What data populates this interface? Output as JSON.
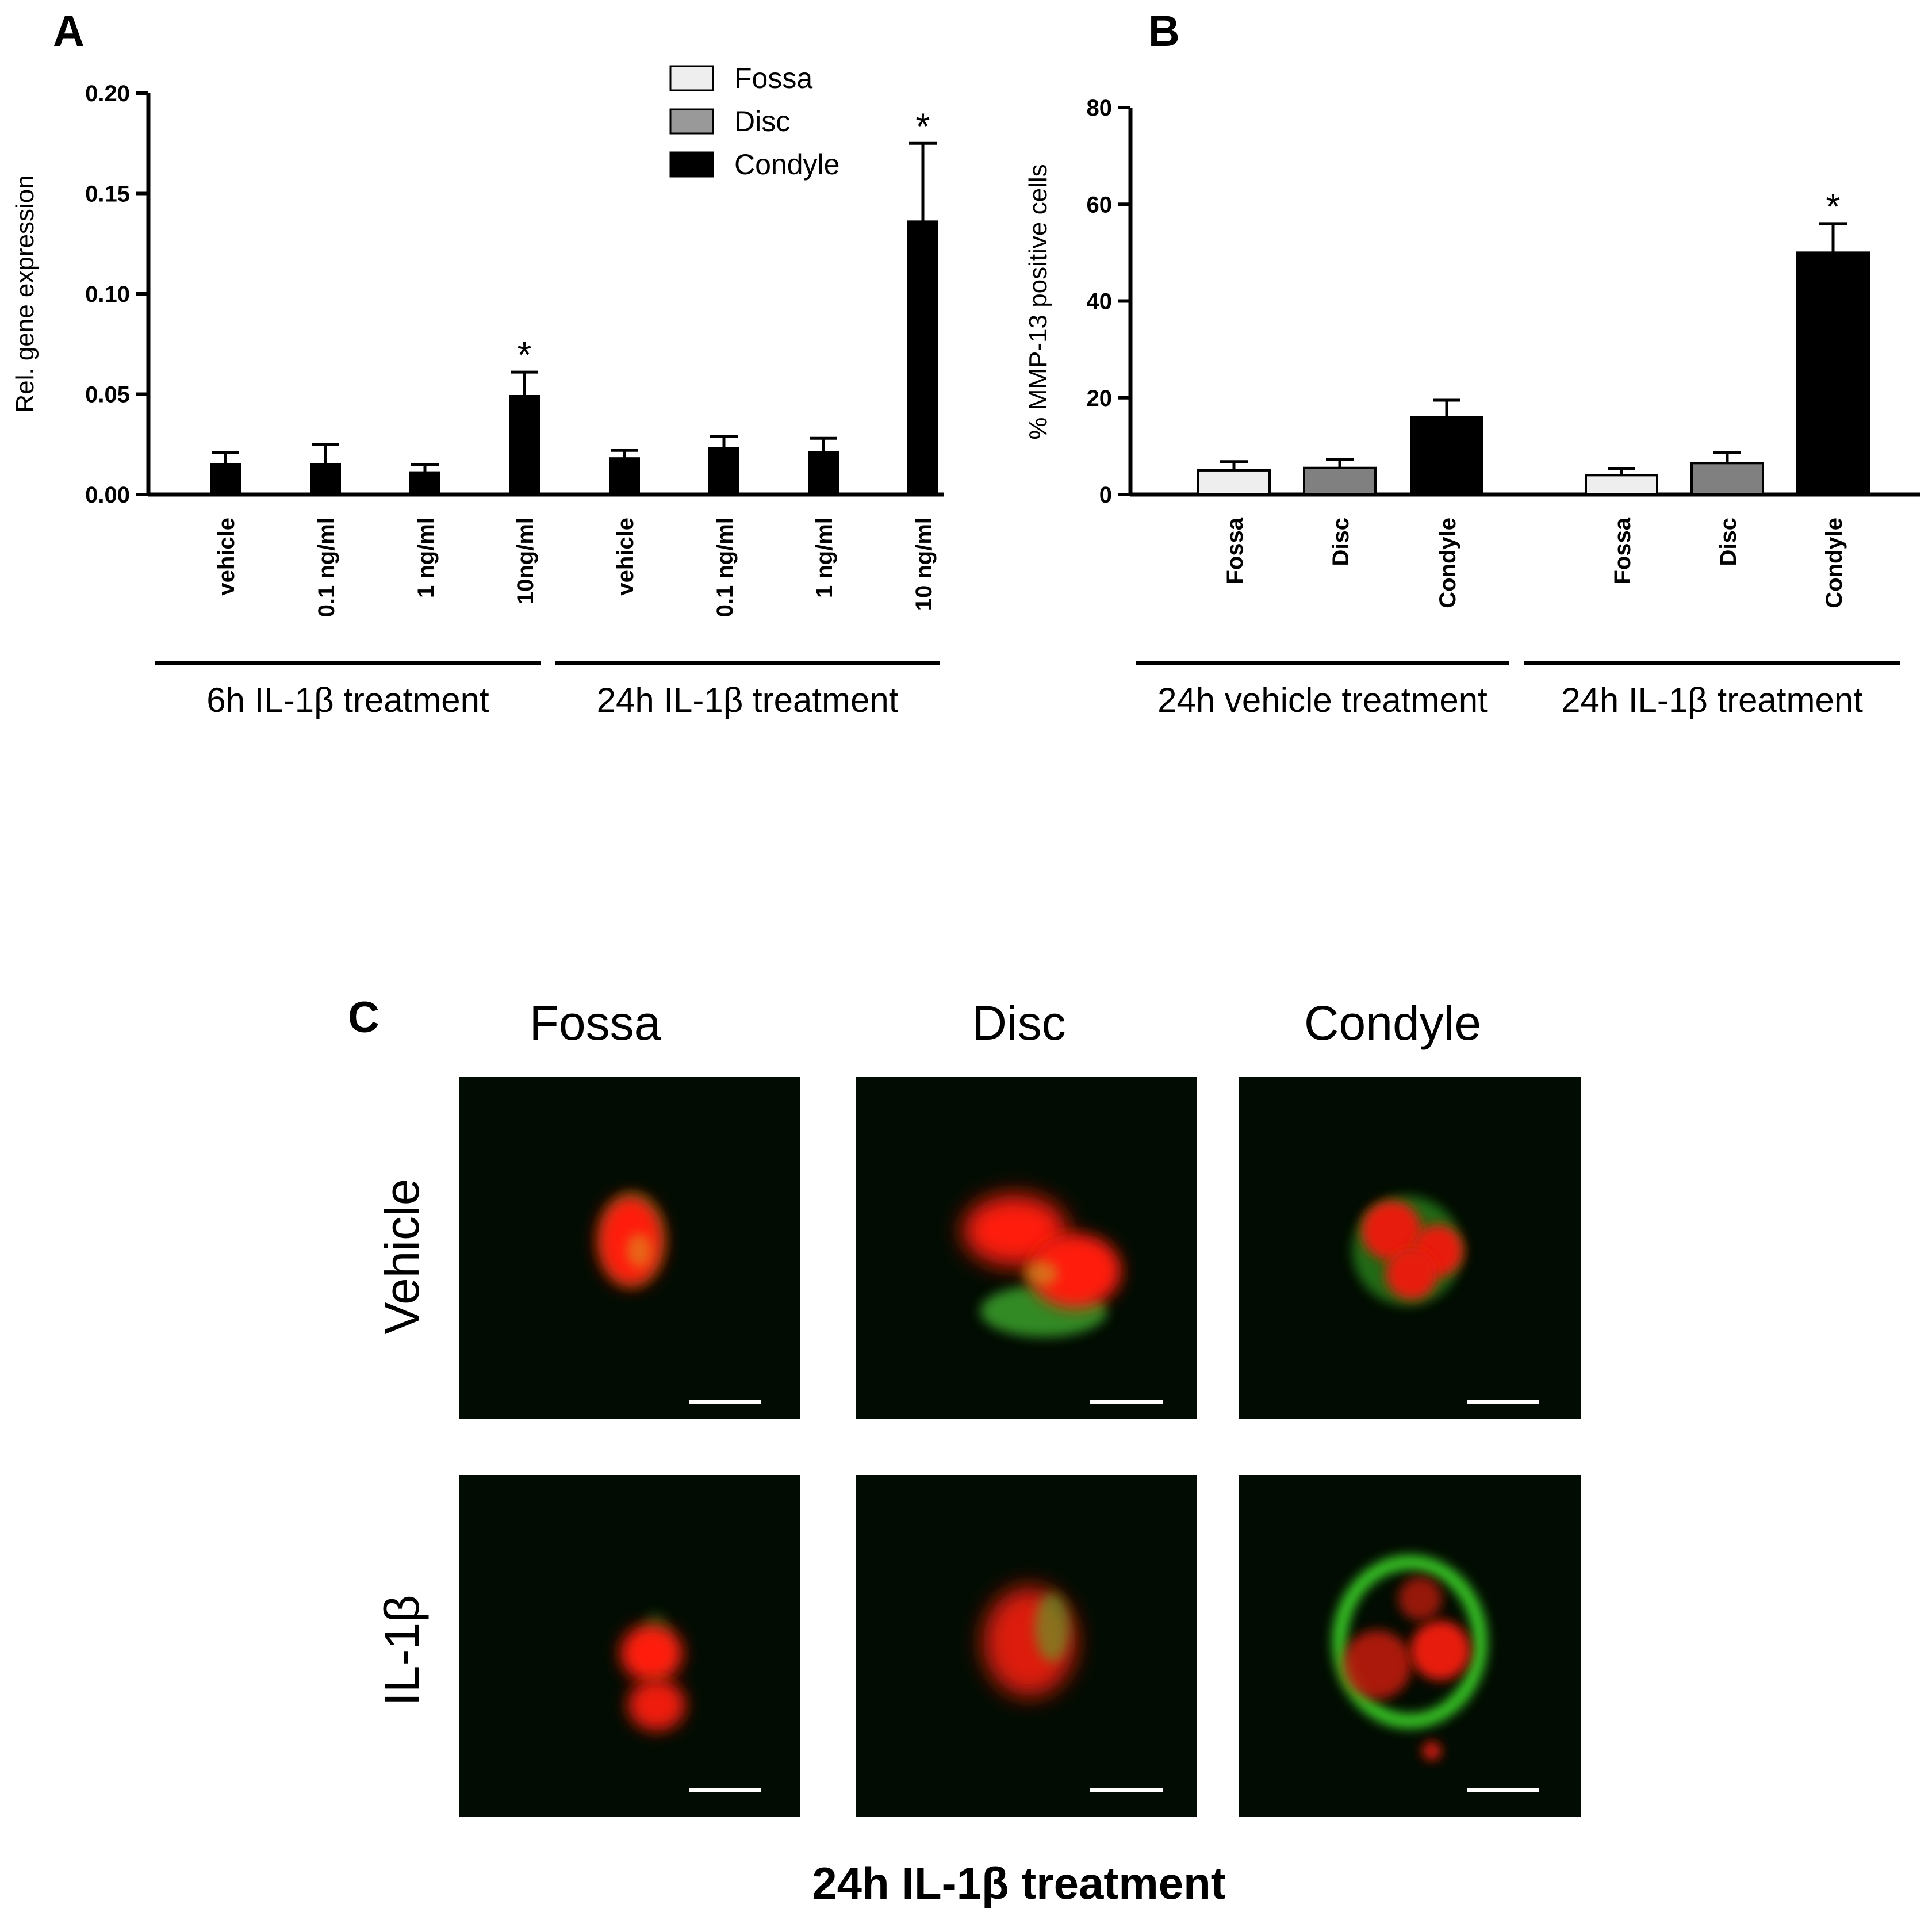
{
  "panel_labels": {
    "a": "A",
    "b": "B",
    "c": "C"
  },
  "chart_data": [
    {
      "id": "A",
      "type": "bar",
      "ylabel": "Rel. gene expression",
      "ylim": [
        0,
        0.2
      ],
      "yticks": [
        "0.00",
        "0.05",
        "0.10",
        "0.15",
        "0.20"
      ],
      "yticks_values": [
        0,
        0.05,
        0.1,
        0.15,
        0.2
      ],
      "legend": [
        {
          "name": "Fossa",
          "color": "#eeeeee"
        },
        {
          "name": "Disc",
          "color": "#999999"
        },
        {
          "name": "Condyle",
          "color": "#000000"
        }
      ],
      "legend_placement": "top-center",
      "categories": [
        "vehicle",
        "0.1 ng/ml",
        "1 ng/ml",
        "10ng/ml",
        "vehicle",
        "0.1 ng/ml",
        "1 ng/ml",
        "10 ng/ml"
      ],
      "series": [
        {
          "name": "Condyle",
          "color": "#000000",
          "values": [
            0.015,
            0.015,
            0.011,
            0.049,
            0.018,
            0.023,
            0.021,
            0.136
          ],
          "errors": [
            0.006,
            0.01,
            0.004,
            0.012,
            0.004,
            0.006,
            0.007,
            0.039
          ]
        }
      ],
      "significant": [
        false,
        false,
        false,
        true,
        false,
        false,
        false,
        true
      ],
      "star_text": "*",
      "groups": [
        {
          "label": "6h IL-1β treatment",
          "span": [
            0,
            3
          ]
        },
        {
          "label": "24h IL-1β treatment",
          "span": [
            4,
            7
          ]
        }
      ]
    },
    {
      "id": "B",
      "type": "bar",
      "ylabel": "% MMP-13 positive cells",
      "ylim": [
        0,
        80
      ],
      "yticks": [
        "0",
        "20",
        "40",
        "60",
        "80"
      ],
      "yticks_values": [
        0,
        20,
        40,
        60,
        80
      ],
      "categories": [
        "Fossa",
        "Disc",
        "Condyle",
        "Fossa",
        "Disc",
        "Condyle"
      ],
      "colors": [
        "#eeeeee",
        "#808080",
        "#000000",
        "#eeeeee",
        "#808080",
        "#000000"
      ],
      "values": [
        5,
        5.5,
        16,
        4,
        6.5,
        50
      ],
      "errors": [
        1.8,
        1.8,
        3.5,
        1.3,
        2.2,
        6
      ],
      "significant": [
        false,
        false,
        false,
        false,
        false,
        true
      ],
      "star_text": "*",
      "groups": [
        {
          "label": "24h vehicle treatment",
          "span": [
            0,
            2
          ]
        },
        {
          "label": "24h IL-1β treatment",
          "span": [
            3,
            5
          ]
        }
      ]
    }
  ],
  "panel_c": {
    "columns": [
      "Fossa",
      "Disc",
      "Condyle"
    ],
    "rows": [
      "Vehicle",
      "IL-1β"
    ],
    "footer": "24h IL-1β treatment"
  }
}
